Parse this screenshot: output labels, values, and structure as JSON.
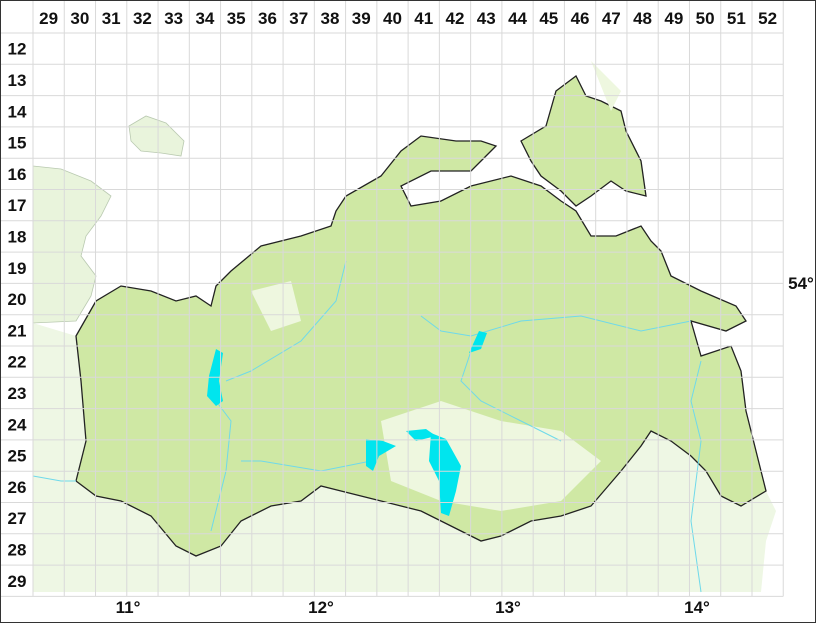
{
  "grid": {
    "columns": [
      "29",
      "30",
      "31",
      "32",
      "33",
      "34",
      "35",
      "36",
      "37",
      "38",
      "39",
      "40",
      "41",
      "42",
      "43",
      "44",
      "45",
      "46",
      "47",
      "48",
      "49",
      "50",
      "51",
      "52"
    ],
    "rows": [
      "12",
      "13",
      "14",
      "15",
      "16",
      "17",
      "18",
      "19",
      "20",
      "21",
      "22",
      "23",
      "24",
      "25",
      "26",
      "27",
      "28",
      "29"
    ]
  },
  "longitude_labels": [
    "11°",
    "12°",
    "13°",
    "14°"
  ],
  "latitude_labels": [
    "54°"
  ],
  "colors": {
    "region_fill": "#cfe8a4",
    "surrounding_land": "#e9f4dc",
    "forest_light": "#f1f8e6",
    "water": "#00e5ee",
    "river": "#6fd9ea",
    "grid_line": "#dddddd",
    "border": "#222222"
  }
}
